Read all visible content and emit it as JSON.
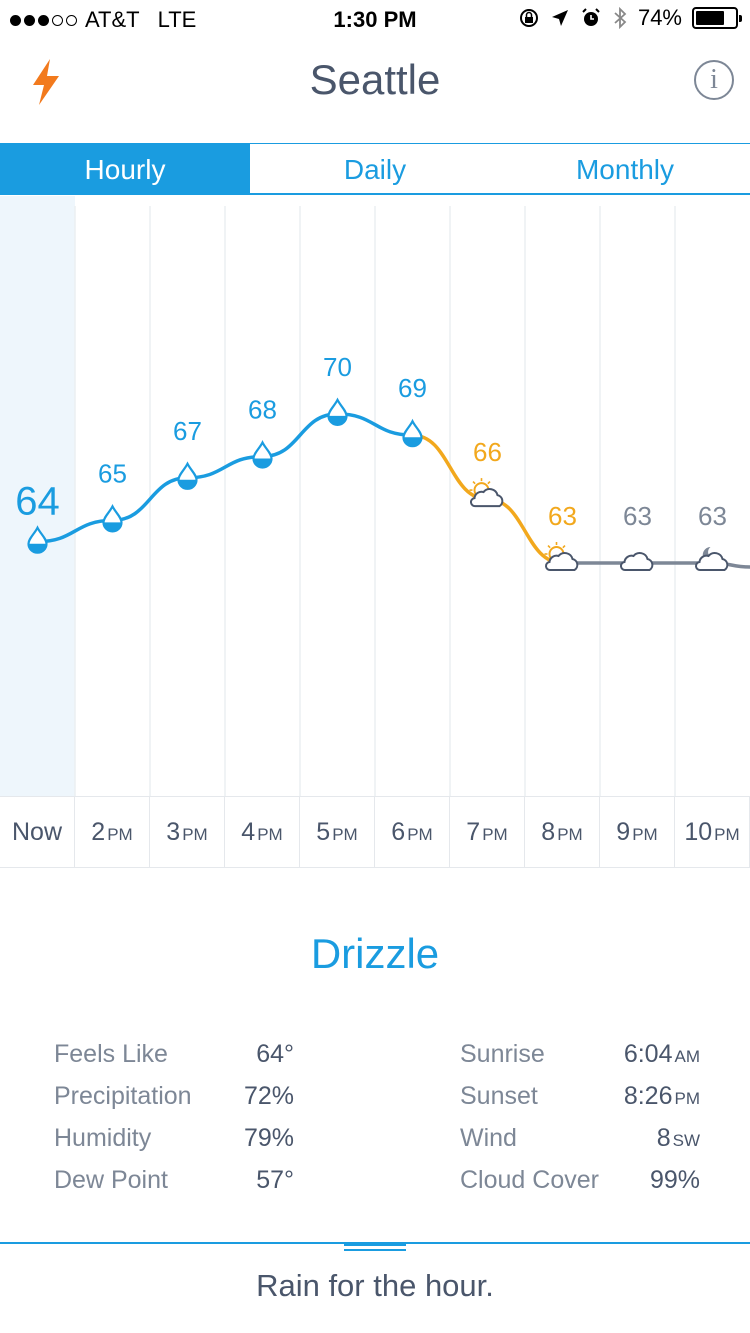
{
  "status_bar": {
    "carrier": "AT&T",
    "network": "LTE",
    "time": "1:30 PM",
    "battery_percent": "74%",
    "battery_level": 0.74,
    "icons": [
      "orientation-lock-icon",
      "location-arrow-icon",
      "alarm-icon",
      "bluetooth-icon"
    ]
  },
  "header": {
    "city": "Seattle",
    "left_icon": "lightning-bolt-icon",
    "right_icon": "info-icon",
    "info_glyph": "i"
  },
  "tabs": [
    {
      "label": "Hourly",
      "active": true
    },
    {
      "label": "Daily",
      "active": false
    },
    {
      "label": "Monthly",
      "active": false
    }
  ],
  "hourly": [
    {
      "hour": "Now",
      "suffix": "",
      "temp": "64",
      "icon": "raindrop-icon",
      "color": "#1a9ce0"
    },
    {
      "hour": "2",
      "suffix": "PM",
      "temp": "65",
      "icon": "raindrop-icon",
      "color": "#1a9ce0"
    },
    {
      "hour": "3",
      "suffix": "PM",
      "temp": "67",
      "icon": "raindrop-icon",
      "color": "#1a9ce0"
    },
    {
      "hour": "4",
      "suffix": "PM",
      "temp": "68",
      "icon": "raindrop-icon",
      "color": "#1a9ce0"
    },
    {
      "hour": "5",
      "suffix": "PM",
      "temp": "70",
      "icon": "raindrop-icon",
      "color": "#1a9ce0"
    },
    {
      "hour": "6",
      "suffix": "PM",
      "temp": "69",
      "icon": "raindrop-icon",
      "color": "#1a9ce0"
    },
    {
      "hour": "7",
      "suffix": "PM",
      "temp": "66",
      "icon": "partly-cloudy-icon",
      "color": "#f2a81d"
    },
    {
      "hour": "8",
      "suffix": "PM",
      "temp": "63",
      "icon": "partly-cloudy-icon",
      "color": "#f2a81d"
    },
    {
      "hour": "9",
      "suffix": "PM",
      "temp": "63",
      "icon": "cloud-icon",
      "color": "#7d8796"
    },
    {
      "hour": "10",
      "suffix": "PM",
      "temp": "63",
      "icon": "partly-cloudy-night-icon",
      "color": "#7d8796"
    }
  ],
  "condition": "Drizzle",
  "details_left": [
    {
      "label": "Feels Like",
      "value": "64°",
      "unit": ""
    },
    {
      "label": "Precipitation",
      "value": "72%",
      "unit": ""
    },
    {
      "label": "Humidity",
      "value": "79%",
      "unit": ""
    },
    {
      "label": "Dew Point",
      "value": "57°",
      "unit": ""
    }
  ],
  "details_right": [
    {
      "label": "Sunrise",
      "value": "6:04",
      "unit": "AM"
    },
    {
      "label": "Sunset",
      "value": "8:26",
      "unit": "PM"
    },
    {
      "label": "Wind",
      "value": "8",
      "unit": "SW"
    },
    {
      "label": "Cloud Cover",
      "value": "99%",
      "unit": ""
    }
  ],
  "summary": "Rain for the hour.",
  "colors": {
    "accent": "#1a9ce0",
    "evening": "#f2a81d",
    "night": "#7d8796",
    "text": "#4a566b"
  }
}
